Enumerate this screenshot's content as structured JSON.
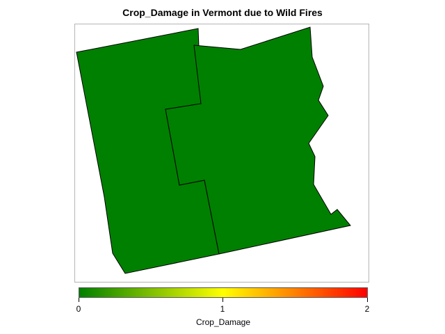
{
  "title": "Crop_Damage in Vermont due to Wild Fires",
  "map": {
    "regions": [
      {
        "name": "",
        "value": 0
      },
      {
        "name": "",
        "value": 0
      }
    ],
    "fill_color": "#008000",
    "border_color": "#000000"
  },
  "legend": {
    "title": "Crop_Damage",
    "min": 0,
    "max": 2,
    "ticks": [
      "0",
      "1",
      "2"
    ],
    "colors": [
      "#008000",
      "#ffff00",
      "#ff0000"
    ]
  }
}
